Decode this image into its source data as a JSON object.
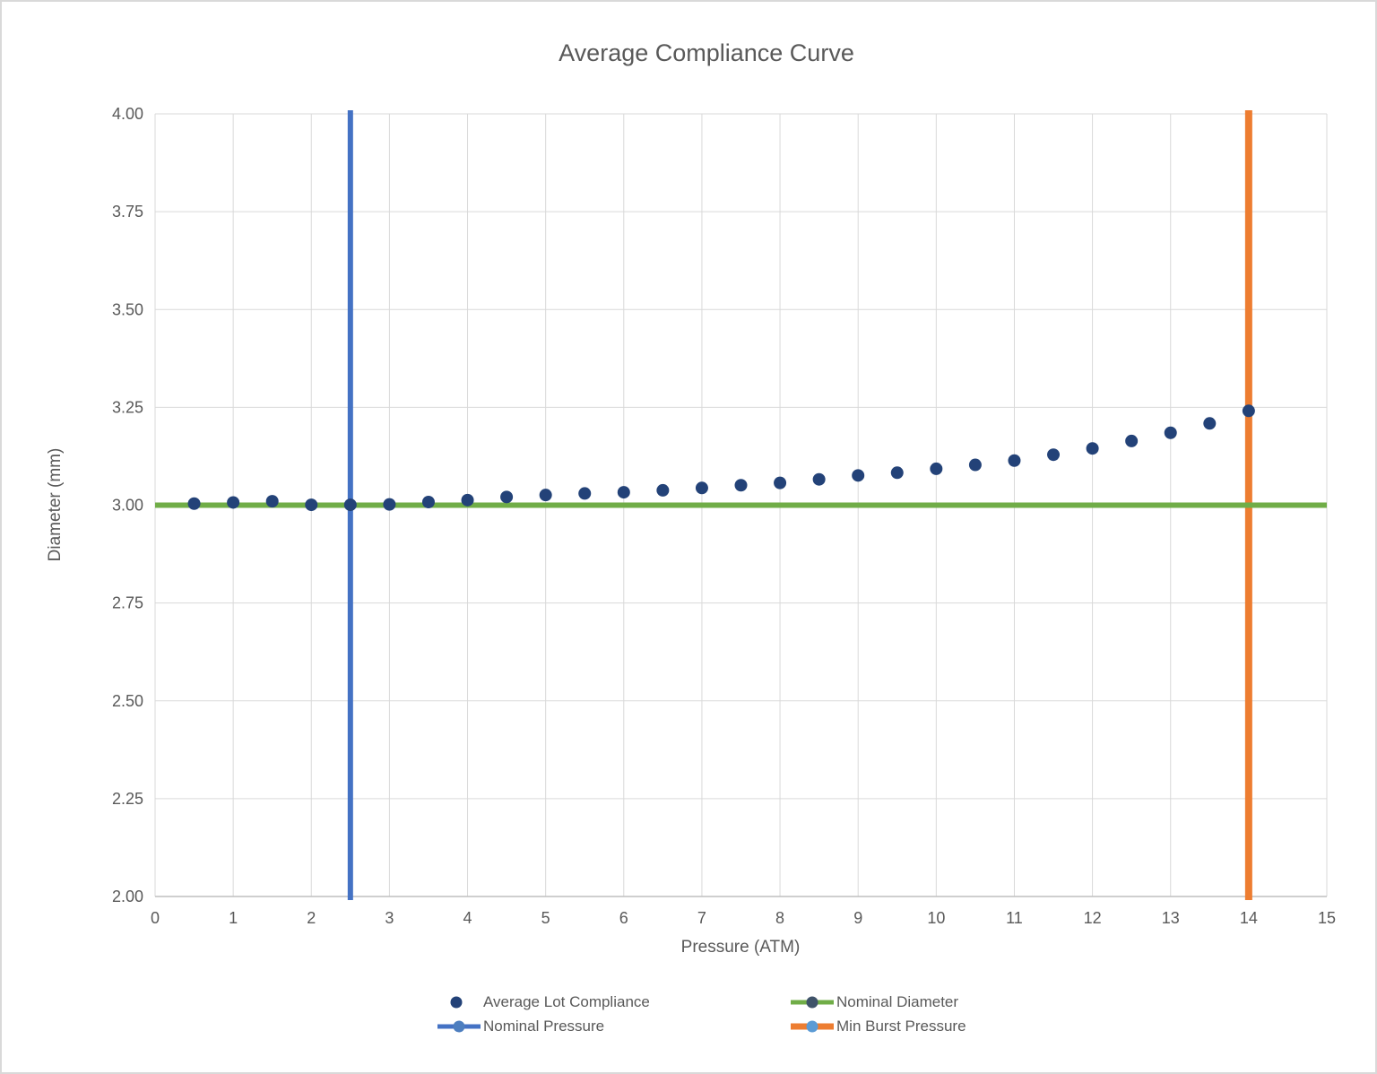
{
  "chart_data": {
    "type": "scatter",
    "title": "Average Compliance Curve",
    "xlabel": "Pressure (ATM)",
    "ylabel": "Diameter (mm)",
    "xlim": [
      0,
      15
    ],
    "ylim": [
      2.0,
      4.0
    ],
    "grid": true,
    "legend_position": "bottom",
    "x_tick_values": [
      0,
      1,
      2,
      3,
      4,
      5,
      6,
      7,
      8,
      9,
      10,
      11,
      12,
      13,
      14,
      15
    ],
    "x_tick_labels": [
      "0",
      "1",
      "2",
      "3",
      "4",
      "5",
      "6",
      "7",
      "8",
      "9",
      "10",
      "11",
      "12",
      "13",
      "14",
      "15"
    ],
    "y_tick_values": [
      2.0,
      2.25,
      2.5,
      2.75,
      3.0,
      3.25,
      3.5,
      3.75,
      4.0
    ],
    "y_tick_labels": [
      "2.00",
      "2.25",
      "2.50",
      "2.75",
      "3.00",
      "3.25",
      "3.50",
      "3.75",
      "4.00"
    ],
    "colors": {
      "gridline": "#d9d9d9",
      "axis_line": "#bfbfbf",
      "text": "#595959",
      "background": "#ffffff"
    },
    "series": [
      {
        "name": "Average Lot Compliance",
        "type": "scatter",
        "color": "#234278",
        "marker_radius": 7,
        "x": [
          0.5,
          1.0,
          1.5,
          2.0,
          2.5,
          3.0,
          3.5,
          4.0,
          4.5,
          5.0,
          5.5,
          6.0,
          6.5,
          7.0,
          7.5,
          8.0,
          8.5,
          9.0,
          9.5,
          10.0,
          10.5,
          11.0,
          11.5,
          12.0,
          12.5,
          13.0,
          13.5,
          14.0
        ],
        "y": [
          3.004,
          3.007,
          3.01,
          3.001,
          3.001,
          3.002,
          3.008,
          3.013,
          3.021,
          3.026,
          3.03,
          3.033,
          3.038,
          3.044,
          3.051,
          3.057,
          3.066,
          3.076,
          3.083,
          3.093,
          3.103,
          3.114,
          3.129,
          3.145,
          3.164,
          3.185,
          3.209,
          3.241
        ]
      },
      {
        "name": "Nominal Diameter",
        "type": "hline",
        "color": "#70ad47",
        "legend_marker_color": "#3f5369",
        "line_width": 6,
        "y": 3.0
      },
      {
        "name": "Nominal Pressure",
        "type": "vline",
        "color": "#4472c4",
        "legend_marker_color": "#4d7ebf",
        "line_width": 6,
        "x": 2.5
      },
      {
        "name": "Min Burst Pressure",
        "type": "vline",
        "color": "#ed7d31",
        "legend_marker_color": "#5b9bd5",
        "line_width": 8,
        "x": 14.0
      }
    ]
  }
}
